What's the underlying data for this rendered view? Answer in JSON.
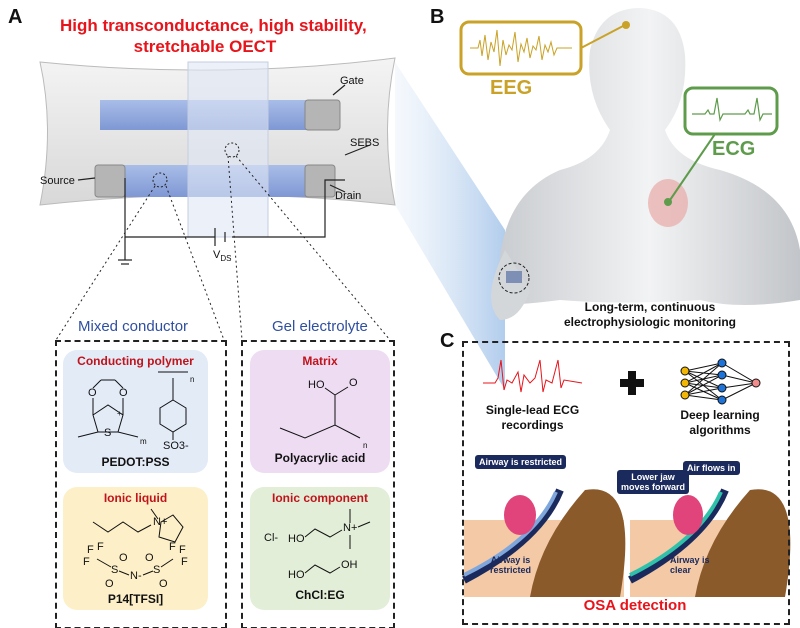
{
  "panels": {
    "a": "A",
    "b": "B",
    "c": "C"
  },
  "panel_a": {
    "title_line1": "High transconductance, high stability,",
    "title_line2": "stretchable OECT",
    "labels": {
      "gate": "Gate",
      "sebs": "SEBS",
      "source": "Source",
      "drain": "Drain",
      "vds": "V",
      "vds_sub": "DS"
    },
    "mixed_conductor": {
      "heading": "Mixed conductor",
      "conducting_polymer": {
        "title": "Conducting polymer",
        "name": "PEDOT:PSS",
        "atoms": [
          "O",
          "O",
          "S",
          "+",
          "m",
          "n",
          "SO3-"
        ]
      },
      "ionic_liquid": {
        "title": "Ionic liquid",
        "name": "P14[TFSI]",
        "atoms": [
          "N+",
          "F",
          "F",
          "F",
          "S",
          "O",
          "O",
          "N-",
          "S",
          "O",
          "O",
          "F",
          "F",
          "F"
        ]
      }
    },
    "gel_electrolyte": {
      "heading": "Gel electrolyte",
      "matrix": {
        "title": "Matrix",
        "name": "Polyacrylic acid",
        "atoms": [
          "HO",
          "O",
          "n"
        ]
      },
      "ionic_component": {
        "title": "Ionic component",
        "name": "ChCl:EG",
        "atoms": [
          "Cl-",
          "HO",
          "N+",
          "HO",
          "OH"
        ]
      }
    }
  },
  "panel_b": {
    "eeg": "EEG",
    "ecg": "ECG",
    "caption_line1": "Long-term, continuous",
    "caption_line2": "electrophysiologic monitoring",
    "colors": {
      "eeg": "#c9a227",
      "ecg": "#5e9c4c"
    }
  },
  "panel_c": {
    "ecg_label_line1": "Single-lead ECG",
    "ecg_label_line2": "recordings",
    "dl_label_line1": "Deep learning",
    "dl_label_line2": "algorithms",
    "left": {
      "bubble": "Airway is restricted",
      "note_line1": "Airway is",
      "note_line2": "restricted"
    },
    "right": {
      "bubble1_line1": "Lower jaw",
      "bubble1_line2": "moves forward",
      "bubble2": "Air flows in",
      "note_line1": "Airway is",
      "note_line2": "clear"
    },
    "footer": "OSA detection"
  }
}
